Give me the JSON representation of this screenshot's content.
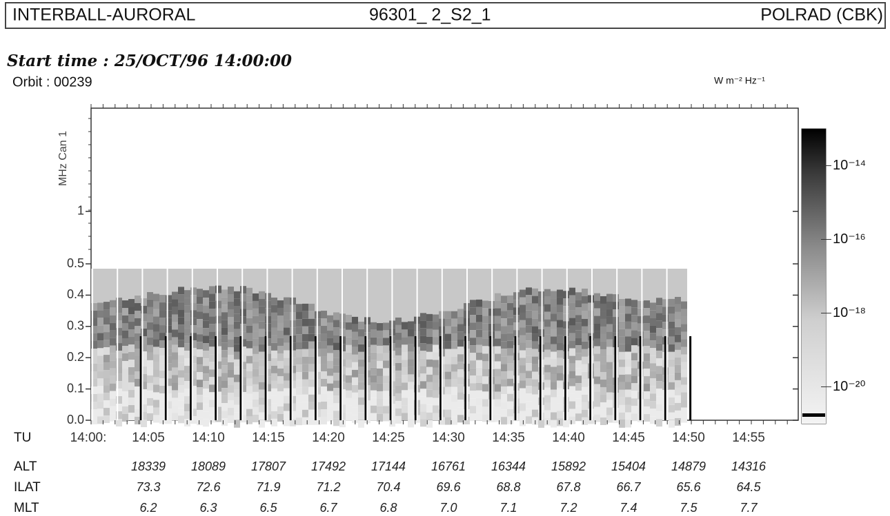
{
  "chart_data": {
    "type": "spectrogram",
    "header": [
      "INTERBALL-AURORAL",
      "96301_ 2_S2_1",
      "POLRAD (CBK)"
    ],
    "start_time": "Start time : 25/OCT/96 14:00:00",
    "orbit": "Orbit : 00239",
    "ylabel": "MHz Can 1",
    "ylim": [
      0,
      3.9
    ],
    "yticks": [
      {
        "value": 0,
        "label": "0.0"
      },
      0.1,
      0.2,
      0.3,
      0.4,
      0.5,
      1
    ],
    "time_labels": [
      "14:00:",
      "14:05",
      "14:10",
      "14:15",
      "14:20",
      "14:25",
      "14:30",
      "14:35",
      "14:40",
      "14:45",
      "14:50",
      "14:55"
    ],
    "colorbar": {
      "unit": "W m⁻² Hz⁻¹",
      "lim": [
        1e-21,
        1e-13
      ],
      "ticks": [
        {
          "value": 1e-14,
          "label": "10⁻¹⁴"
        },
        {
          "value": 1e-16,
          "label": "10⁻¹⁶"
        },
        {
          "value": 1e-18,
          "label": "10⁻¹⁸"
        },
        {
          "value": 1e-20,
          "label": "10⁻²⁰"
        }
      ]
    },
    "ephemeris": [
      {
        "label": "TU",
        "values": []
      },
      {
        "label": "ALT",
        "values": [
          18339,
          18089,
          17807,
          17492,
          17144,
          16761,
          16344,
          15892,
          15404,
          14879,
          14316
        ]
      },
      {
        "label": "ILAT",
        "values": [
          73.3,
          72.6,
          71.9,
          71.2,
          70.4,
          69.6,
          68.8,
          67.8,
          66.7,
          65.6,
          64.5
        ]
      },
      {
        "label": "MLT",
        "values": [
          "6.2",
          "6.3",
          "6.5",
          "6.7",
          "6.8",
          "7.0",
          "7.1",
          "7.2",
          "7.4",
          "7.5",
          "7.7"
        ]
      }
    ]
  }
}
